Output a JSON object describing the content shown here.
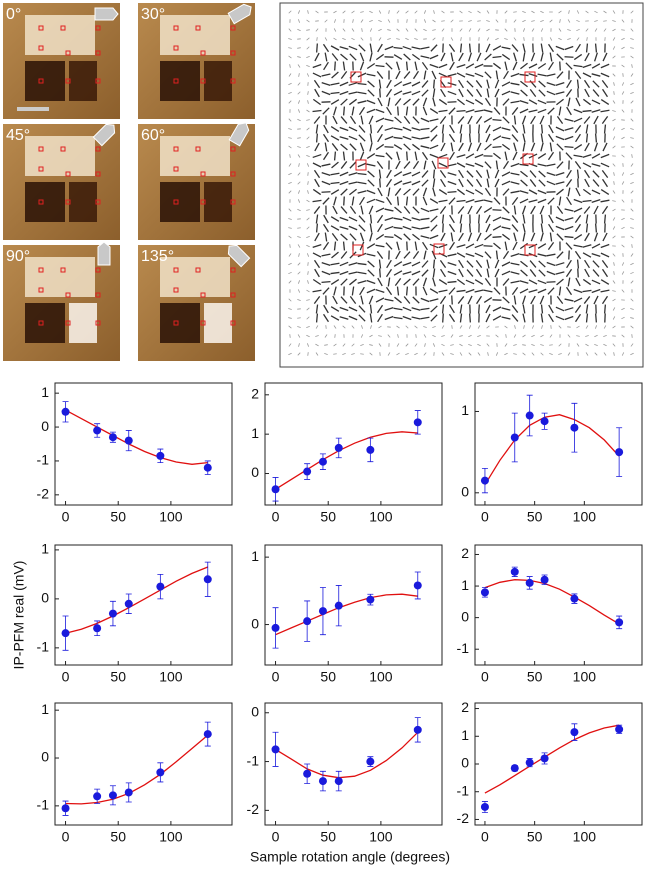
{
  "images": {
    "labels": [
      "0°",
      "30°",
      "45°",
      "60°",
      "90°",
      "135°"
    ]
  },
  "shared": {
    "ylabel": "IP-PFM real (mV)",
    "xlabel": "Sample rotation angle (degrees)"
  },
  "chart_data": [
    {
      "type": "scatter",
      "x": [
        0,
        30,
        45,
        60,
        90,
        135
      ],
      "values": [
        0.45,
        -0.1,
        -0.3,
        -0.4,
        -0.85,
        -1.2
      ],
      "errors": [
        0.3,
        0.2,
        0.15,
        0.3,
        0.2,
        0.2
      ],
      "color": "#1a1adc",
      "fit_x": [
        0,
        15,
        30,
        45,
        60,
        75,
        90,
        105,
        120,
        135
      ],
      "fit_values": [
        0.5,
        0.25,
        0,
        -0.25,
        -0.5,
        -0.72,
        -0.9,
        -1.03,
        -1.1,
        -1.05
      ],
      "fit_color": "#e01010",
      "xlim": [
        -10,
        158
      ],
      "ylim": [
        -2.3,
        1.3
      ],
      "xticks": [
        0,
        50,
        100
      ],
      "yticks": [
        -2,
        -1,
        0,
        1
      ]
    },
    {
      "type": "scatter",
      "x": [
        0,
        30,
        45,
        60,
        90,
        135
      ],
      "values": [
        -0.4,
        0.05,
        0.3,
        0.65,
        0.6,
        1.3
      ],
      "errors": [
        0.3,
        0.2,
        0.2,
        0.25,
        0.3,
        0.3
      ],
      "color": "#1a1adc",
      "fit_x": [
        0,
        15,
        30,
        45,
        60,
        75,
        90,
        105,
        120,
        135
      ],
      "fit_values": [
        -0.4,
        -0.15,
        0.1,
        0.35,
        0.58,
        0.77,
        0.92,
        1.02,
        1.06,
        1.03
      ],
      "fit_color": "#e01010",
      "xlim": [
        -10,
        158
      ],
      "ylim": [
        -0.8,
        2.3
      ],
      "xticks": [
        0,
        50,
        100
      ],
      "yticks": [
        0,
        1,
        2
      ]
    },
    {
      "type": "scatter",
      "x": [
        0,
        30,
        45,
        60,
        90,
        135
      ],
      "values": [
        0.15,
        0.68,
        0.95,
        0.88,
        0.8,
        0.5
      ],
      "errors": [
        0.15,
        0.3,
        0.25,
        0.1,
        0.3,
        0.3
      ],
      "color": "#1a1adc",
      "fit_x": [
        0,
        15,
        30,
        45,
        60,
        75,
        90,
        105,
        120,
        135
      ],
      "fit_values": [
        0.1,
        0.4,
        0.65,
        0.83,
        0.93,
        0.96,
        0.9,
        0.8,
        0.65,
        0.45
      ],
      "fit_color": "#e01010",
      "xlim": [
        -10,
        158
      ],
      "ylim": [
        -0.15,
        1.35
      ],
      "xticks": [
        0,
        50,
        100
      ],
      "yticks": [
        0,
        1
      ]
    },
    {
      "type": "scatter",
      "x": [
        0,
        30,
        45,
        60,
        90,
        135
      ],
      "values": [
        -0.7,
        -0.6,
        -0.3,
        -0.1,
        0.25,
        0.4
      ],
      "errors": [
        0.35,
        0.15,
        0.25,
        0.2,
        0.25,
        0.35
      ],
      "color": "#1a1adc",
      "fit_x": [
        0,
        15,
        30,
        45,
        60,
        75,
        90,
        105,
        120,
        135
      ],
      "fit_values": [
        -0.7,
        -0.62,
        -0.5,
        -0.35,
        -0.18,
        0,
        0.18,
        0.36,
        0.52,
        0.65
      ],
      "fit_color": "#e01010",
      "xlim": [
        -10,
        158
      ],
      "ylim": [
        -1.35,
        1.1
      ],
      "xticks": [
        0,
        50,
        100
      ],
      "yticks": [
        -1,
        0,
        1
      ]
    },
    {
      "type": "scatter",
      "x": [
        0,
        30,
        45,
        60,
        90,
        135
      ],
      "values": [
        -0.05,
        0.05,
        0.2,
        0.28,
        0.37,
        0.58
      ],
      "errors": [
        0.3,
        0.3,
        0.35,
        0.3,
        0.08,
        0.2
      ],
      "color": "#1a1adc",
      "fit_x": [
        0,
        15,
        30,
        45,
        60,
        75,
        90,
        105,
        120,
        135
      ],
      "fit_values": [
        -0.15,
        -0.05,
        0.05,
        0.15,
        0.25,
        0.33,
        0.4,
        0.44,
        0.45,
        0.42
      ],
      "fit_color": "#e01010",
      "xlim": [
        -10,
        158
      ],
      "ylim": [
        -0.6,
        1.18
      ],
      "xticks": [
        0,
        50,
        100
      ],
      "yticks": [
        0,
        1
      ]
    },
    {
      "type": "scatter",
      "x": [
        0,
        30,
        45,
        60,
        90,
        135
      ],
      "values": [
        0.8,
        1.45,
        1.1,
        1.2,
        0.6,
        -0.15
      ],
      "errors": [
        0.15,
        0.15,
        0.2,
        0.15,
        0.15,
        0.2
      ],
      "color": "#1a1adc",
      "fit_x": [
        0,
        15,
        30,
        45,
        60,
        75,
        90,
        105,
        120,
        135
      ],
      "fit_values": [
        0.95,
        1.12,
        1.2,
        1.18,
        1.08,
        0.9,
        0.65,
        0.38,
        0.08,
        -0.2
      ],
      "fit_color": "#e01010",
      "xlim": [
        -10,
        158
      ],
      "ylim": [
        -1.5,
        2.3
      ],
      "xticks": [
        0,
        50,
        100
      ],
      "yticks": [
        -1,
        0,
        1,
        2
      ]
    },
    {
      "type": "scatter",
      "x": [
        0,
        30,
        45,
        60,
        90,
        135
      ],
      "values": [
        -1.05,
        -0.8,
        -0.78,
        -0.72,
        -0.3,
        0.5
      ],
      "errors": [
        0.15,
        0.15,
        0.2,
        0.2,
        0.2,
        0.25
      ],
      "color": "#1a1adc",
      "fit_x": [
        0,
        15,
        30,
        45,
        60,
        75,
        90,
        105,
        120,
        135
      ],
      "fit_values": [
        -0.95,
        -0.96,
        -0.93,
        -0.86,
        -0.74,
        -0.56,
        -0.34,
        -0.08,
        0.2,
        0.48
      ],
      "fit_color": "#e01010",
      "xlim": [
        -10,
        158
      ],
      "ylim": [
        -1.4,
        1.15
      ],
      "xticks": [
        0,
        50,
        100
      ],
      "yticks": [
        -1,
        0,
        1
      ]
    },
    {
      "type": "scatter",
      "x": [
        0,
        30,
        45,
        60,
        90,
        135
      ],
      "values": [
        -0.75,
        -1.25,
        -1.4,
        -1.4,
        -1.0,
        -0.35
      ],
      "errors": [
        0.35,
        0.2,
        0.2,
        0.2,
        0.1,
        0.25
      ],
      "color": "#1a1adc",
      "fit_x": [
        0,
        15,
        30,
        45,
        60,
        75,
        90,
        105,
        120,
        135
      ],
      "fit_values": [
        -0.75,
        -0.95,
        -1.15,
        -1.28,
        -1.33,
        -1.3,
        -1.18,
        -0.98,
        -0.72,
        -0.4
      ],
      "fit_color": "#e01010",
      "xlim": [
        -10,
        158
      ],
      "ylim": [
        -2.3,
        0.2
      ],
      "xticks": [
        0,
        50,
        100
      ],
      "yticks": [
        -2,
        -1,
        0
      ]
    },
    {
      "type": "scatter",
      "x": [
        0,
        30,
        45,
        60,
        90,
        135
      ],
      "values": [
        -1.55,
        -0.15,
        0.05,
        0.2,
        1.15,
        1.25
      ],
      "errors": [
        0.2,
        0.1,
        0.15,
        0.2,
        0.3,
        0.15
      ],
      "color": "#1a1adc",
      "fit_x": [
        0,
        15,
        30,
        45,
        60,
        75,
        90,
        105,
        120,
        135
      ],
      "fit_values": [
        -1.05,
        -0.75,
        -0.42,
        -0.08,
        0.25,
        0.58,
        0.88,
        1.12,
        1.3,
        1.4
      ],
      "fit_color": "#e01010",
      "xlim": [
        -10,
        158
      ],
      "ylim": [
        -2.2,
        2.2
      ],
      "xticks": [
        0,
        50,
        100
      ],
      "yticks": [
        -2,
        -1,
        0,
        1,
        2
      ]
    }
  ]
}
